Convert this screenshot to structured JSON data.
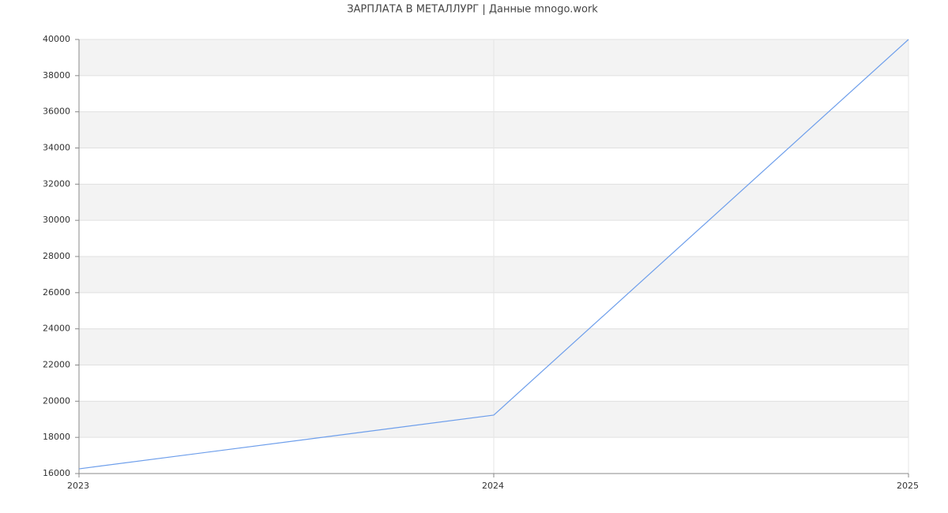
{
  "chart_data": {
    "type": "line",
    "title": "ЗАРПЛАТА В МЕТАЛЛУРГ | Данные mnogo.work",
    "x": [
      2023,
      2024,
      2025
    ],
    "series": [
      {
        "color": "#6d9eeb",
        "values": [
          16260,
          19230,
          40000
        ]
      }
    ],
    "xlim": [
      2023,
      2025
    ],
    "xticks": [
      2023,
      2024,
      2025
    ],
    "ylim": [
      16000,
      40000
    ],
    "yticks": [
      16000,
      18000,
      20000,
      22000,
      24000,
      26000,
      28000,
      30000,
      32000,
      34000,
      36000,
      38000,
      40000
    ],
    "grid": true
  }
}
